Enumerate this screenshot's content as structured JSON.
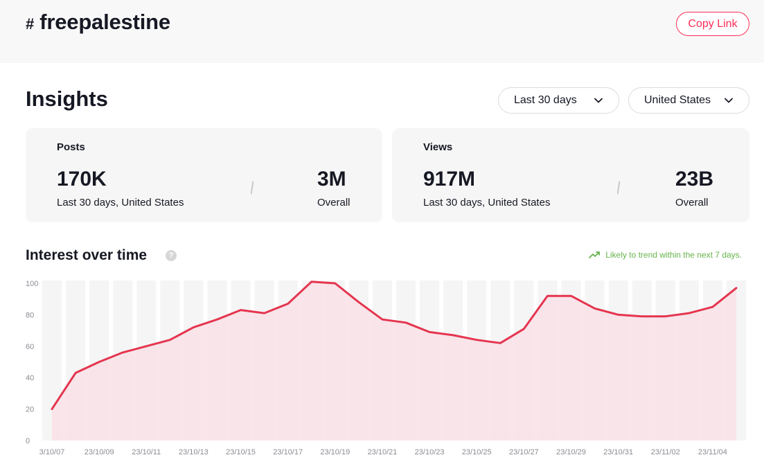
{
  "header": {
    "hash_symbol": "#",
    "hashtag": "freepalestine",
    "copy_link_label": "Copy Link"
  },
  "insights": {
    "title": "Insights",
    "range_select": "Last 30 days",
    "region_select": "United States"
  },
  "cards": {
    "posts": {
      "title": "Posts",
      "period_value": "170K",
      "period_label": "Last 30 days, United States",
      "overall_value": "3M",
      "overall_label": "Overall"
    },
    "views": {
      "title": "Views",
      "period_value": "917M",
      "period_label": "Last 30 days, United States",
      "overall_value": "23B",
      "overall_label": "Overall"
    }
  },
  "interest": {
    "title": "Interest over time",
    "help_icon": "question-icon",
    "trend_icon": "trending-up-icon",
    "trend_text": "Likely to trend within the next 7 days."
  },
  "colors": {
    "accent": "#fe2c55",
    "line": "#e5354f",
    "fill": "#f8e1e6",
    "band": "#f5f5f5",
    "trend": "#66b34c"
  },
  "chart_data": {
    "type": "area",
    "ylim": [
      0,
      100
    ],
    "yticks": [
      "100",
      "80",
      "60",
      "40",
      "20",
      "0"
    ],
    "x_labels": [
      "3/10/07",
      "23/10/09",
      "23/10/11",
      "23/10/13",
      "23/10/15",
      "23/10/17",
      "23/10/19",
      "23/10/21",
      "23/10/23",
      "23/10/25",
      "23/10/27",
      "23/10/29",
      "23/10/31",
      "23/11/02",
      "23/11/04"
    ],
    "values": [
      20,
      43,
      50,
      56,
      60,
      64,
      72,
      77,
      83,
      81,
      87,
      101,
      100,
      88,
      77,
      75,
      69,
      67,
      64,
      62,
      71,
      92,
      92,
      84,
      80,
      79,
      79,
      81,
      85,
      97
    ]
  }
}
